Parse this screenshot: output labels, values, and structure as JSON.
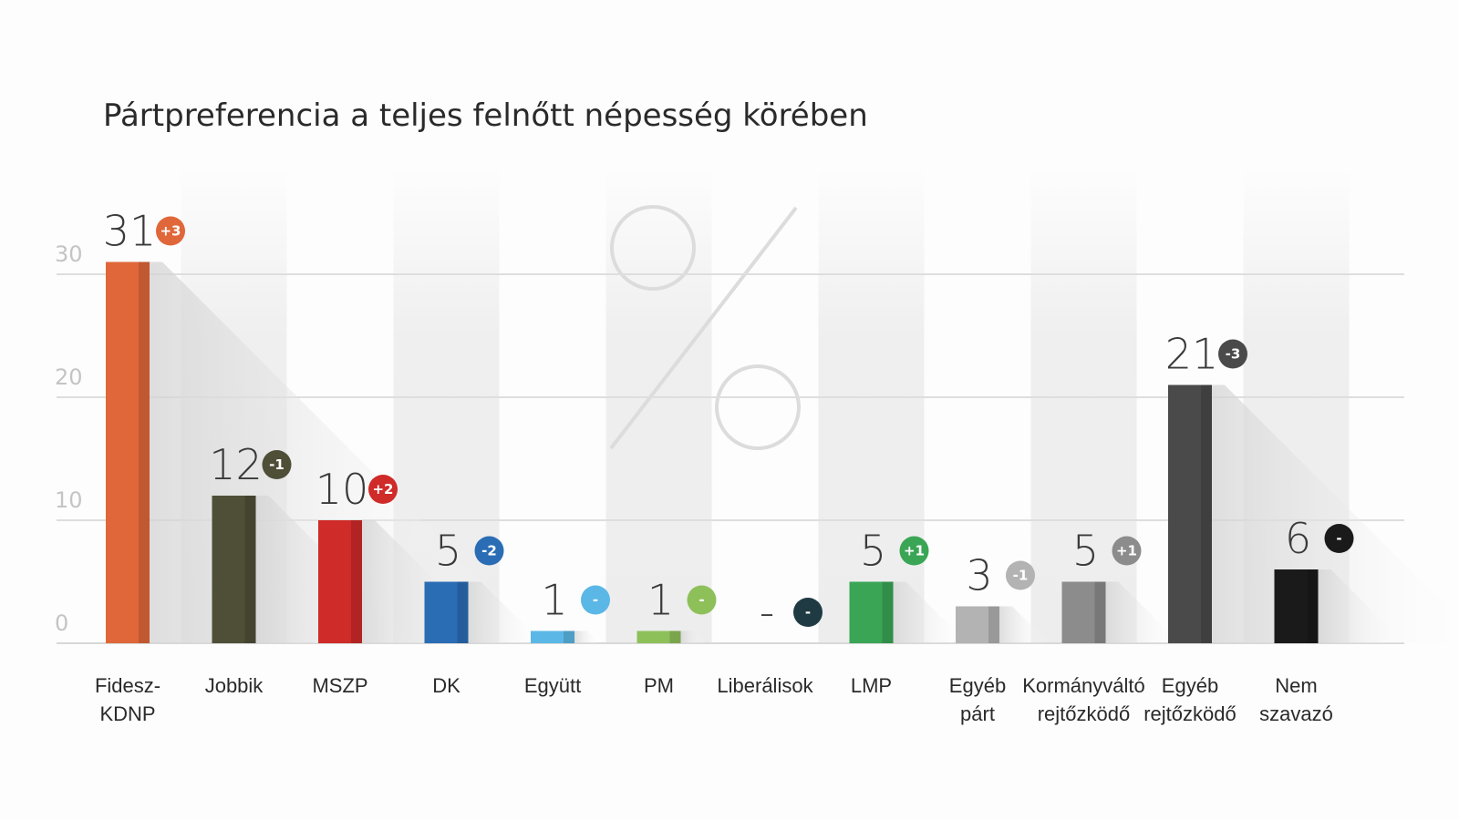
{
  "chart_data": {
    "type": "bar",
    "title": "Pártpreferencia a teljes felnőtt népesség körében",
    "ylim": [
      0,
      30
    ],
    "yticks": [
      "0",
      "10",
      "20",
      "30"
    ],
    "grid": true,
    "categories": [
      [
        "Fidesz-",
        "KDNP"
      ],
      [
        "Jobbik"
      ],
      [
        "MSZP"
      ],
      [
        "DK"
      ],
      [
        "Együtt"
      ],
      [
        "PM"
      ],
      [
        "Liberálisok"
      ],
      [
        "LMP"
      ],
      [
        "Egyéb",
        "párt"
      ],
      [
        "Kormányváltó",
        "rejtőzködő"
      ],
      [
        "Egyéb",
        "rejtőzködő"
      ],
      [
        "Nem",
        "szavazó"
      ]
    ],
    "values": [
      31,
      12,
      10,
      5,
      1,
      1,
      null,
      5,
      3,
      5,
      21,
      6
    ],
    "value_labels": [
      "31",
      "12",
      "10",
      "5",
      "1",
      "1",
      "-",
      "5",
      "3",
      "5",
      "21",
      "6"
    ],
    "changes": [
      "+3",
      "-1",
      "+2",
      "-2",
      "-",
      "-",
      "-",
      "+1",
      "-1",
      "+1",
      "-3",
      "-"
    ],
    "colors": [
      "#e0673a",
      "#4f4f38",
      "#cf2b29",
      "#2a6db5",
      "#5bb7e6",
      "#8ec05a",
      "#1f3a42",
      "#3aa655",
      "#b3b3b3",
      "#8c8c8c",
      "#4a4a4a",
      "#1a1a1a"
    ],
    "background_symbol": "percent-icon"
  }
}
